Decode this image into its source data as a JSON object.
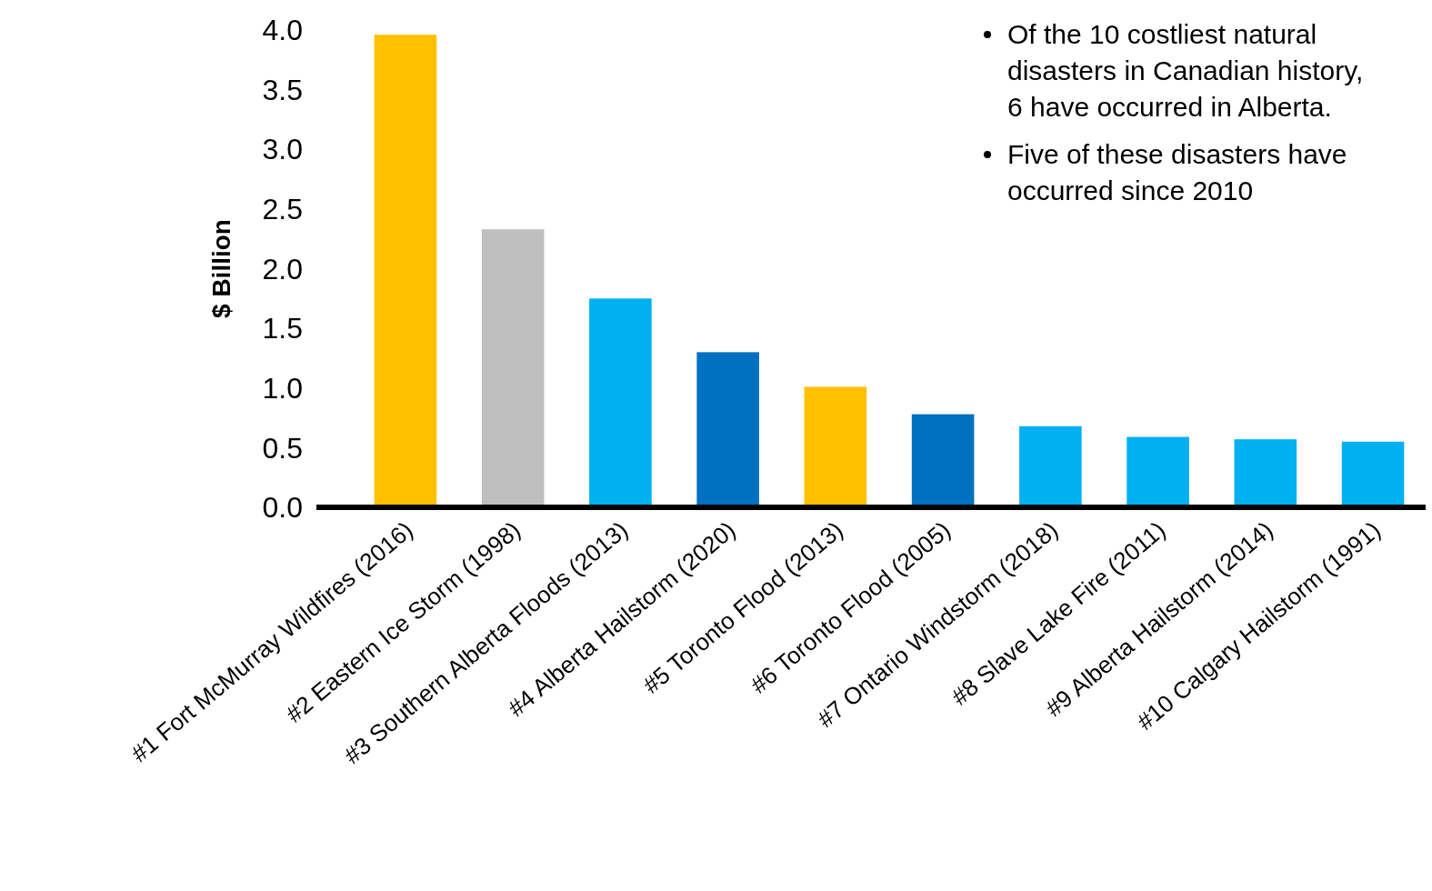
{
  "chart_data": {
    "type": "bar",
    "ylabel": "$ Billion",
    "categories": [
      "#1 Fort McMurray Wildfires (2016)",
      "#2 Eastern Ice Storm (1998)",
      "#3 Southern Alberta Floods (2013)",
      "#4 Alberta Hailstorm (2020)",
      "#5 Toronto Flood (2013)",
      "#6 Toronto Flood (2005)",
      "#7 Ontario Windstorm (2018)",
      "#8 Slave Lake Fire (2011)",
      "#9 Alberta Hailstorm (2014)",
      "#10 Calgary Hailstorm (1991)"
    ],
    "values": [
      3.96,
      2.33,
      1.75,
      1.3,
      1.01,
      0.78,
      0.68,
      0.59,
      0.57,
      0.55
    ],
    "colors": [
      "#ffc000",
      "#bfbfbf",
      "#00b0f0",
      "#0070c0",
      "#ffc000",
      "#0070c0",
      "#00b0f0",
      "#00b0f0",
      "#00b0f0",
      "#00b0f0"
    ],
    "ylim": [
      0,
      4
    ],
    "yticks": [
      {
        "value": 0,
        "label": "0.0"
      },
      {
        "value": 0.5,
        "label": "0.5"
      },
      {
        "value": 1,
        "label": "1.0"
      },
      {
        "value": 1.5,
        "label": "1.5"
      },
      {
        "value": 2,
        "label": "2.0"
      },
      {
        "value": 2.5,
        "label": "2.5"
      },
      {
        "value": 3,
        "label": "3.0"
      },
      {
        "value": 3.5,
        "label": "3.5"
      },
      {
        "value": 4,
        "label": "4.0"
      }
    ],
    "grid": false,
    "annotations": [
      "Of the 10 costliest natural disasters in Canadian history, 6 have occurred in Alberta.",
      "Five of these disasters have occurred since 2010"
    ]
  }
}
